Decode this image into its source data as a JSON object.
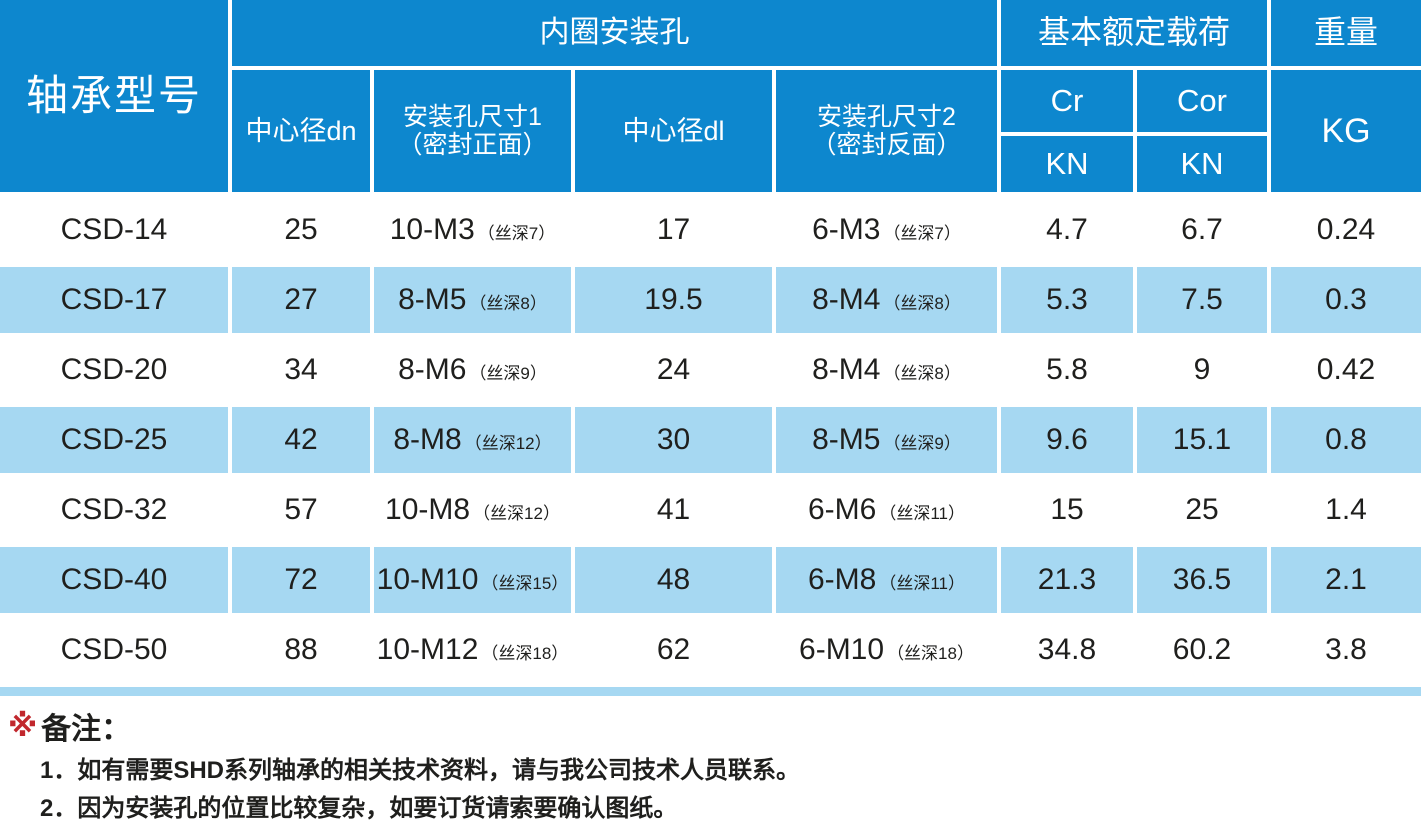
{
  "table": {
    "header": {
      "model": "轴承型号",
      "group_inner_holes": "内圈安装孔",
      "group_load": "基本额定载荷",
      "group_weight": "重量",
      "sub_dn": "中心径dn",
      "sub_size1_line1": "安装孔尺寸1",
      "sub_size1_line2": "（密封正面）",
      "sub_dl": "中心径dl",
      "sub_size2_line1": "安装孔尺寸2",
      "sub_size2_line2": "（密封反面）",
      "cr": "Cr",
      "cor": "Cor",
      "kn1": "KN",
      "kn2": "KN",
      "kg": "KG"
    },
    "rows": [
      {
        "model": "CSD-14",
        "dn": "25",
        "size1": "10-M3",
        "size1_note": "（丝深7）",
        "dl": "17",
        "size2": "6-M3",
        "size2_note": "（丝深7）",
        "cr": "4.7",
        "cor": "6.7",
        "kg": "0.24"
      },
      {
        "model": "CSD-17",
        "dn": "27",
        "size1": "8-M5",
        "size1_note": "（丝深8）",
        "dl": "19.5",
        "size2": "8-M4",
        "size2_note": "（丝深8）",
        "cr": "5.3",
        "cor": "7.5",
        "kg": "0.3"
      },
      {
        "model": "CSD-20",
        "dn": "34",
        "size1": "8-M6",
        "size1_note": "（丝深9）",
        "dl": "24",
        "size2": "8-M4",
        "size2_note": "（丝深8）",
        "cr": "5.8",
        "cor": "9",
        "kg": "0.42"
      },
      {
        "model": "CSD-25",
        "dn": "42",
        "size1": "8-M8",
        "size1_note": "（丝深12）",
        "dl": "30",
        "size2": "8-M5",
        "size2_note": "（丝深9）",
        "cr": "9.6",
        "cor": "15.1",
        "kg": "0.8"
      },
      {
        "model": "CSD-32",
        "dn": "57",
        "size1": "10-M8",
        "size1_note": "（丝深12）",
        "dl": "41",
        "size2": "6-M6",
        "size2_note": "（丝深11）",
        "cr": "15",
        "cor": "25",
        "kg": "1.4"
      },
      {
        "model": "CSD-40",
        "dn": "72",
        "size1": "10-M10",
        "size1_note": "（丝深15）",
        "dl": "48",
        "size2": "6-M8",
        "size2_note": "（丝深11）",
        "cr": "21.3",
        "cor": "36.5",
        "kg": "2.1"
      },
      {
        "model": "CSD-50",
        "dn": "88",
        "size1": "10-M12",
        "size1_note": "（丝深18）",
        "dl": "62",
        "size2": "6-M10",
        "size2_note": "（丝深18）",
        "cr": "34.8",
        "cor": "60.2",
        "kg": "3.8"
      }
    ]
  },
  "notes": {
    "marker": "※",
    "title": "备注：",
    "items": [
      "1．如有需要SHD系列轴承的相关技术资料，请与我公司技术人员联系。",
      "2．因为安装孔的位置比较复杂，如要订货请索要确认图纸。"
    ]
  },
  "colors": {
    "header_blue": "#0d87ce",
    "row_light_blue": "#a6d8f2",
    "note_marker_red": "#c1272d",
    "text_dark": "#1f1f1d"
  }
}
